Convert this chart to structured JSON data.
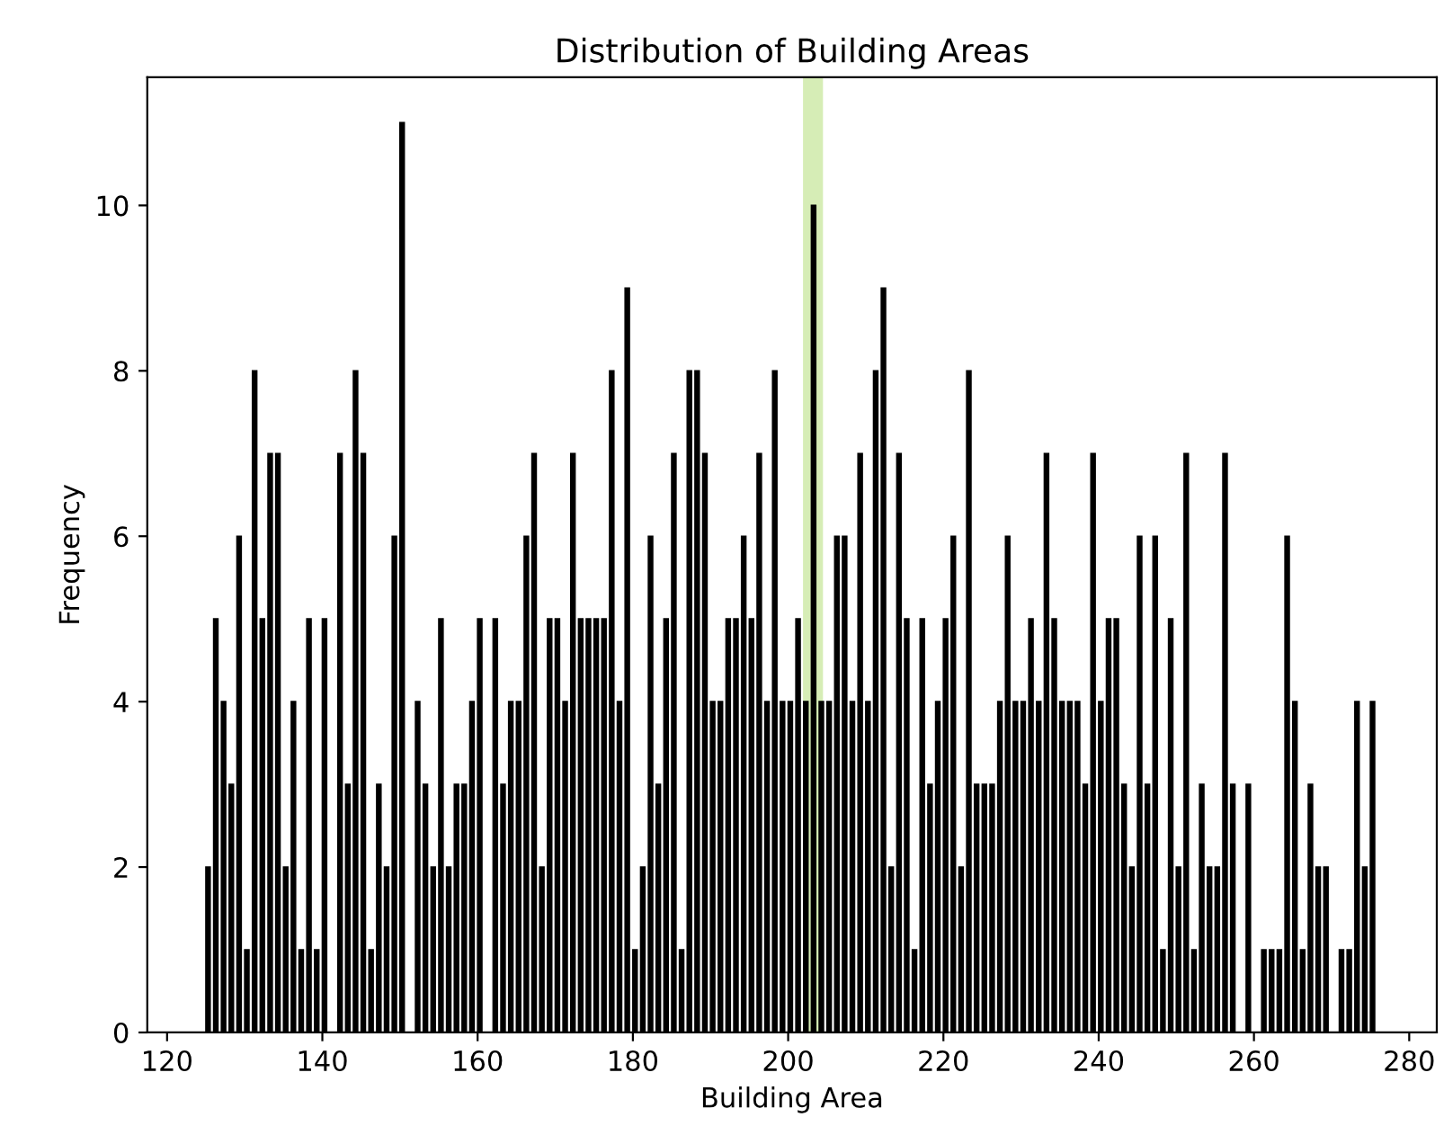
{
  "chart_data": {
    "type": "histogram",
    "title": "Distribution of Building Areas",
    "xlabel": "Building Area",
    "ylabel": "Frequency",
    "bins": [
      125,
      126,
      127,
      128,
      129,
      130,
      131,
      132,
      133,
      134,
      135,
      136,
      137,
      138,
      139,
      140,
      141,
      142,
      143,
      144,
      145,
      146,
      147,
      148,
      149,
      150,
      151,
      152,
      153,
      154,
      155,
      156,
      157,
      158,
      159,
      160,
      161,
      162,
      163,
      164,
      165,
      166,
      167,
      168,
      169,
      170,
      171,
      172,
      173,
      174,
      175,
      176,
      177,
      178,
      179,
      180,
      181,
      182,
      183,
      184,
      185,
      186,
      187,
      188,
      189,
      190,
      191,
      192,
      193,
      194,
      195,
      196,
      197,
      198,
      199,
      200,
      201,
      202,
      203,
      204,
      205,
      206,
      207,
      208,
      209,
      210,
      211,
      212,
      213,
      214,
      215,
      216,
      217,
      218,
      219,
      220,
      221,
      222,
      223,
      224,
      225,
      226,
      227,
      228,
      229,
      230,
      231,
      232,
      233,
      234,
      235,
      236,
      237,
      238,
      239,
      240,
      241,
      242,
      243,
      244,
      245,
      246,
      247,
      248,
      249,
      250,
      251,
      252,
      253,
      254,
      255,
      256,
      257,
      258,
      259,
      260,
      261,
      262,
      263,
      264,
      265,
      266,
      267,
      268,
      269,
      270,
      271,
      272,
      273,
      274,
      275,
      276
    ],
    "values": [
      2,
      5,
      4,
      3,
      6,
      1,
      8,
      5,
      7,
      7,
      2,
      4,
      1,
      5,
      1,
      5,
      0,
      7,
      3,
      8,
      7,
      1,
      3,
      2,
      6,
      11,
      0,
      4,
      3,
      2,
      5,
      2,
      3,
      3,
      4,
      5,
      0,
      5,
      3,
      4,
      4,
      6,
      7,
      2,
      5,
      5,
      4,
      7,
      5,
      5,
      5,
      5,
      8,
      4,
      9,
      1,
      2,
      6,
      3,
      5,
      7,
      1,
      8,
      8,
      7,
      4,
      4,
      5,
      5,
      6,
      5,
      7,
      4,
      8,
      4,
      4,
      5,
      4,
      10,
      4,
      4,
      6,
      6,
      4,
      7,
      4,
      8,
      9,
      2,
      7,
      5,
      1,
      5,
      3,
      4,
      5,
      6,
      2,
      8,
      3,
      3,
      3,
      4,
      6,
      4,
      4,
      5,
      4,
      7,
      5,
      4,
      4,
      4,
      3,
      7,
      4,
      5,
      5,
      3,
      2,
      6,
      3,
      6,
      1,
      5,
      2,
      7,
      1,
      3,
      2,
      2,
      7,
      3,
      0,
      3,
      0,
      1,
      1,
      1,
      6,
      4,
      1,
      3,
      2,
      2,
      0,
      1,
      1,
      4,
      2,
      4
    ],
    "color": "#000000",
    "xlim": [
      117.45,
      283.55
    ],
    "xticks": [
      120,
      140,
      160,
      180,
      200,
      220,
      240,
      260,
      280
    ],
    "ylim": [
      0,
      11.55
    ],
    "yticks": [
      0,
      2,
      4,
      6,
      8,
      10
    ],
    "ref_lines": [
      {
        "axis": "x",
        "value": 203.2,
        "color": "#b5de7a"
      }
    ],
    "grid": false
  }
}
